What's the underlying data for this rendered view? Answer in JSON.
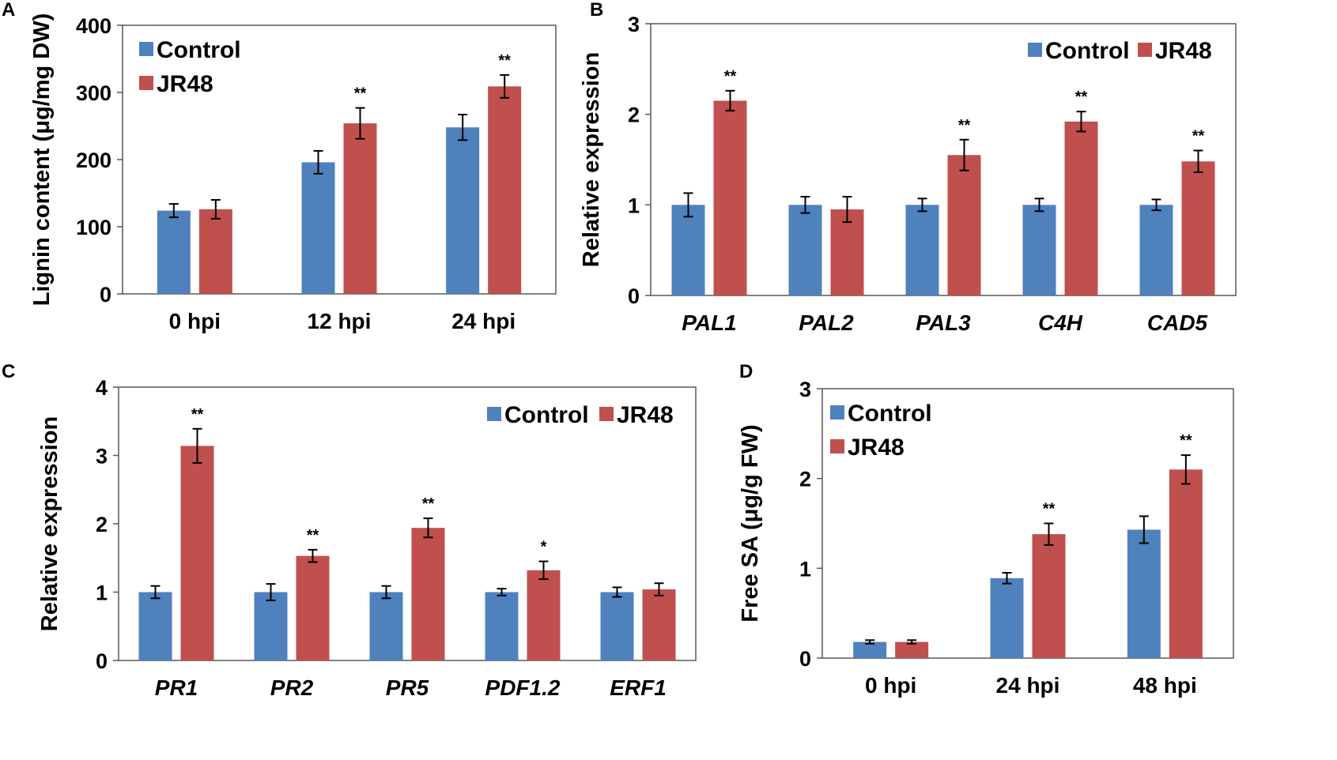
{
  "colors": {
    "control": "#4F81BD",
    "treated": "#C0504D"
  },
  "chart_data": [
    {
      "panel": "A",
      "type": "bar",
      "ylabel": "Lignin content (μg/mg DW)",
      "ylim": [
        0,
        400
      ],
      "yticks": [
        0,
        100,
        200,
        300,
        400
      ],
      "italic_categories": false,
      "legend_position": "top-left",
      "categories": [
        "0 hpi",
        "12 hpi",
        "24 hpi"
      ],
      "series": [
        {
          "name": "Control",
          "values": [
            124,
            196,
            248
          ],
          "errors": [
            10,
            17,
            19
          ]
        },
        {
          "name": "JR48",
          "values": [
            126,
            254,
            309
          ],
          "errors": [
            14,
            23,
            17
          ]
        }
      ],
      "significance": [
        "",
        "**",
        "**"
      ]
    },
    {
      "panel": "B",
      "type": "bar",
      "ylabel": "Relative expression",
      "ylim": [
        0,
        3
      ],
      "yticks": [
        0,
        1,
        2,
        3
      ],
      "italic_categories": true,
      "legend_position": "top-right",
      "categories": [
        "PAL1",
        "PAL2",
        "PAL3",
        "C4H",
        "CAD5"
      ],
      "series": [
        {
          "name": "Control",
          "values": [
            1.0,
            1.0,
            1.0,
            1.0,
            1.0
          ],
          "errors": [
            0.13,
            0.09,
            0.07,
            0.07,
            0.06
          ]
        },
        {
          "name": "JR48",
          "values": [
            2.15,
            0.95,
            1.55,
            1.92,
            1.48
          ],
          "errors": [
            0.11,
            0.14,
            0.17,
            0.11,
            0.12
          ]
        }
      ],
      "significance": [
        "**",
        "",
        "**",
        "**",
        "**"
      ]
    },
    {
      "panel": "C",
      "type": "bar",
      "ylabel": "Relative expression",
      "ylim": [
        0,
        4
      ],
      "yticks": [
        0,
        1,
        2,
        3,
        4
      ],
      "italic_categories": true,
      "legend_position": "top-right",
      "categories": [
        "PR1",
        "PR2",
        "PR5",
        "PDF1.2",
        "ERF1"
      ],
      "series": [
        {
          "name": "Control",
          "values": [
            1.0,
            1.0,
            1.0,
            1.0,
            1.0
          ],
          "errors": [
            0.09,
            0.12,
            0.09,
            0.05,
            0.07
          ]
        },
        {
          "name": "JR48",
          "values": [
            3.14,
            1.53,
            1.94,
            1.32,
            1.04
          ],
          "errors": [
            0.25,
            0.09,
            0.14,
            0.13,
            0.09
          ]
        }
      ],
      "significance": [
        "**",
        "**",
        "**",
        "*",
        ""
      ]
    },
    {
      "panel": "D",
      "type": "bar",
      "ylabel": "Free SA (μg/g FW)",
      "ylim": [
        0,
        3
      ],
      "yticks": [
        0,
        1,
        2,
        3
      ],
      "italic_categories": false,
      "legend_position": "top-left",
      "categories": [
        "0 hpi",
        "24 hpi",
        "48 hpi"
      ],
      "series": [
        {
          "name": "Control",
          "values": [
            0.18,
            0.89,
            1.43
          ],
          "errors": [
            0.02,
            0.06,
            0.15
          ]
        },
        {
          "name": "JR48",
          "values": [
            0.18,
            1.38,
            2.1
          ],
          "errors": [
            0.02,
            0.12,
            0.16
          ]
        }
      ],
      "significance": [
        "",
        "**",
        "**"
      ]
    }
  ]
}
